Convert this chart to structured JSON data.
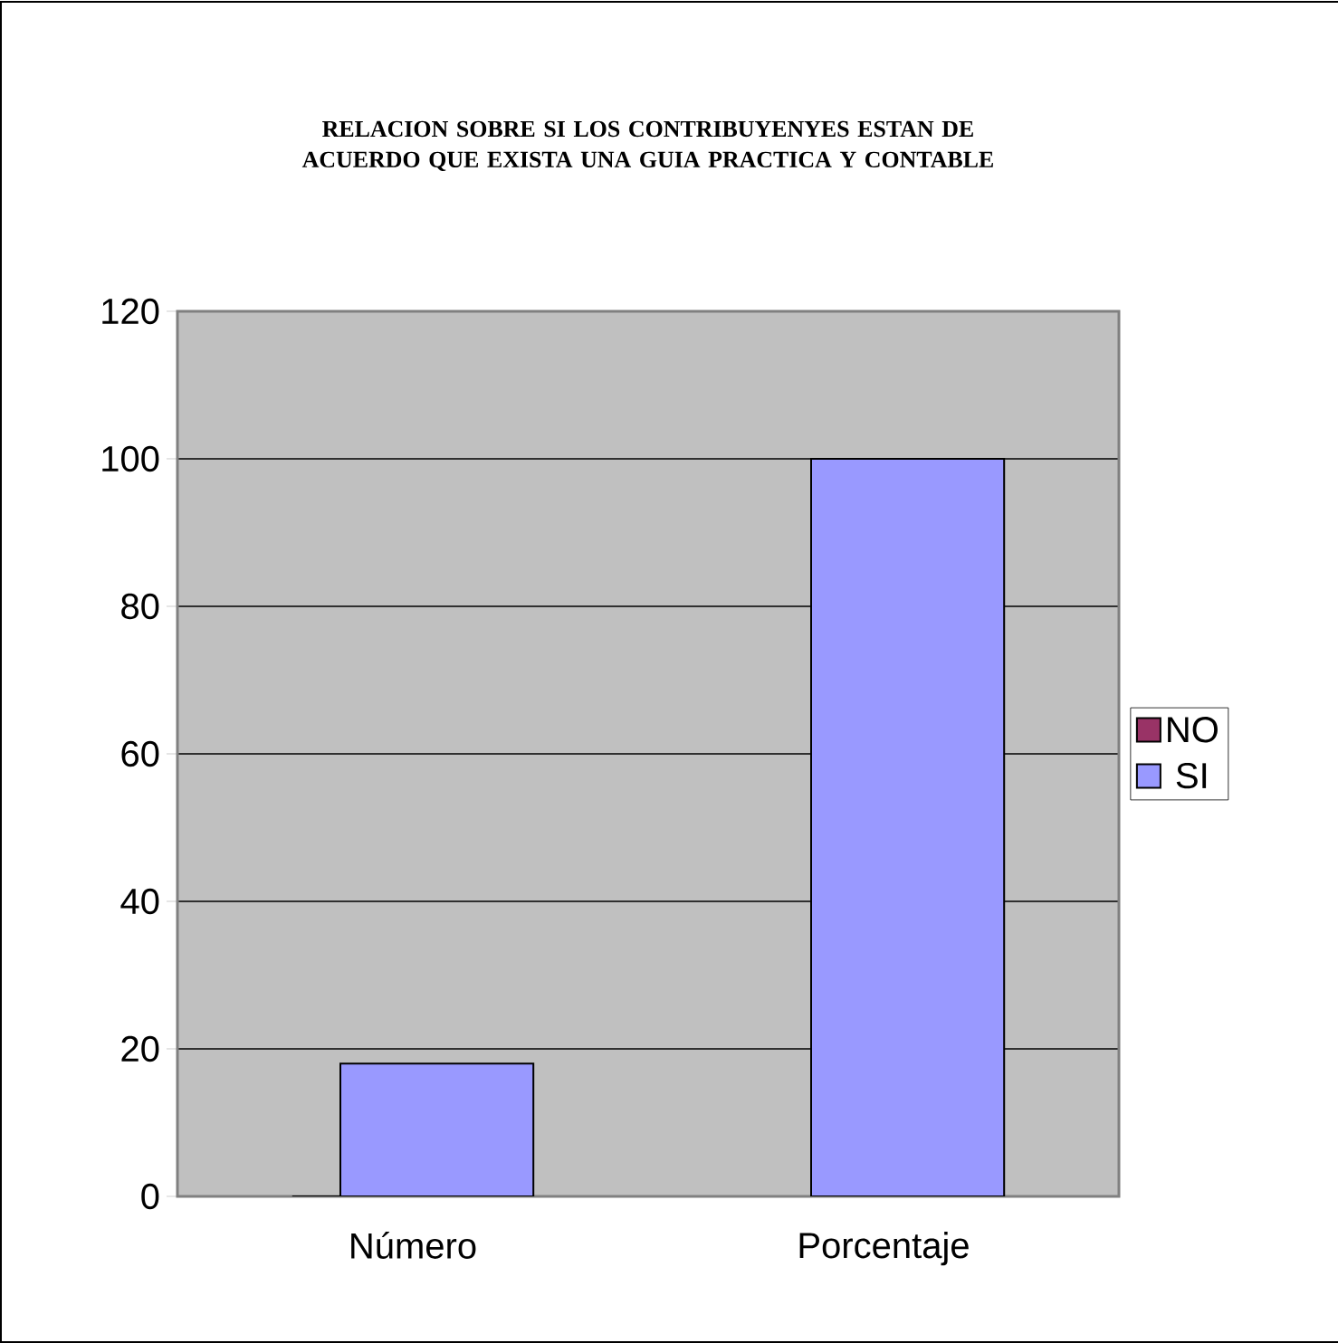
{
  "chart_data": {
    "type": "bar",
    "title": "RELACION SOBRE SI LOS CONTRIBUYENYES ESTAN DE ACUERDO QUE EXISTA UNA GUIA PRACTICA Y CONTABLE",
    "categories": [
      "Número",
      "Porcentaje"
    ],
    "series": [
      {
        "name": "NO",
        "color": "#993366",
        "values": [
          null,
          null
        ]
      },
      {
        "name": "SI",
        "color": "#9999ff",
        "values": [
          18,
          100
        ]
      }
    ],
    "ylim": [
      0,
      120
    ],
    "yticks": [
      0,
      20,
      40,
      60,
      80,
      100,
      120
    ],
    "grid": "y",
    "legend": "right"
  }
}
